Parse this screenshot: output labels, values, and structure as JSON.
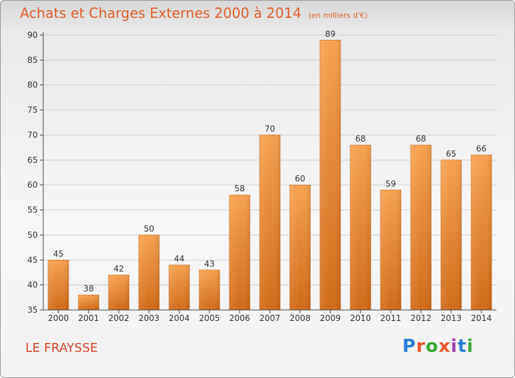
{
  "header": {
    "title": "Achats et Charges Externes 2000 à 2014",
    "subtitle": "(en milliers d'€)"
  },
  "footer": {
    "place": "LE FRAYSSE",
    "logo": "Proxiti",
    "logo_colors": [
      "#2a7fd4",
      "#e8562a",
      "#3aa836",
      "#e8562a",
      "#9c3fb0",
      "#2a7fd4",
      "#3aa836"
    ]
  },
  "colors": {
    "bar_light": "#f7a24f",
    "bar_dark": "#d06a18",
    "title": "#e0602a",
    "place": "#d8452a",
    "text": "#333333",
    "axis": "#444444",
    "grid": "#d0d0d0"
  },
  "chart_data": {
    "type": "bar",
    "categories": [
      "2000",
      "2001",
      "2002",
      "2003",
      "2004",
      "2005",
      "2006",
      "2007",
      "2008",
      "2009",
      "2010",
      "2011",
      "2012",
      "2013",
      "2014"
    ],
    "values": [
      45,
      38,
      42,
      50,
      44,
      43,
      58,
      70,
      60,
      89,
      68,
      59,
      68,
      65,
      66
    ],
    "data_labels": [
      "45",
      "38",
      "42",
      "50",
      "44",
      "43",
      "58",
      "70",
      "60",
      "89",
      "68",
      "59",
      "68",
      "65",
      "66"
    ],
    "ylim": [
      35,
      90
    ],
    "yticks": [
      35,
      40,
      45,
      50,
      55,
      60,
      65,
      70,
      75,
      80,
      85,
      90
    ],
    "ytick_labels": [
      "35",
      "40",
      "45",
      "50",
      "55",
      "60",
      "65",
      "70",
      "75",
      "80",
      "85",
      "90"
    ],
    "grid": true,
    "xlabel": "",
    "ylabel": ""
  }
}
